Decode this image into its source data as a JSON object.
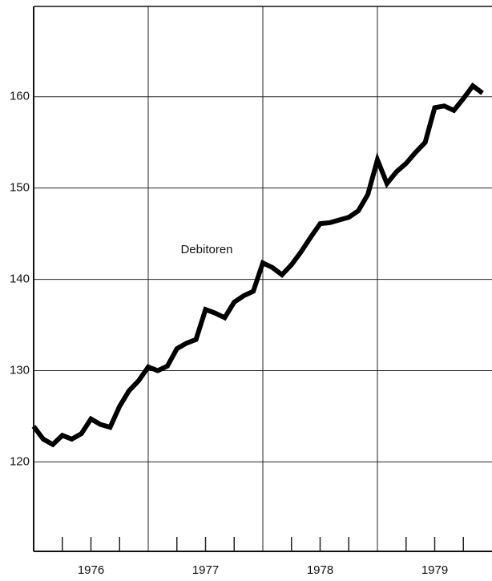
{
  "chart_data": {
    "type": "line",
    "annotation": "Debitoren",
    "x": [
      1976.0,
      1976.083,
      1976.167,
      1976.25,
      1976.333,
      1976.417,
      1976.5,
      1976.583,
      1976.667,
      1976.75,
      1976.833,
      1976.917,
      1977.0,
      1977.083,
      1977.167,
      1977.25,
      1977.333,
      1977.417,
      1977.5,
      1977.583,
      1977.667,
      1977.75,
      1977.833,
      1977.917,
      1978.0,
      1978.083,
      1978.167,
      1978.25,
      1978.333,
      1978.417,
      1978.5,
      1978.583,
      1978.667,
      1978.75,
      1978.833,
      1978.917,
      1979.0,
      1979.083,
      1979.167,
      1979.25,
      1979.333,
      1979.417,
      1979.5,
      1979.583,
      1979.667,
      1979.75,
      1979.833,
      1979.917
    ],
    "series": [
      {
        "name": "Debitoren",
        "color": "#000000",
        "values": [
          123.9,
          122.5,
          121.9,
          122.9,
          122.5,
          123.1,
          124.7,
          124.1,
          123.8,
          126.1,
          127.8,
          128.9,
          130.4,
          130.0,
          130.5,
          132.4,
          133.0,
          133.4,
          136.7,
          136.3,
          135.8,
          137.5,
          138.2,
          138.7,
          141.8,
          141.3,
          140.5,
          141.6,
          143.0,
          144.6,
          146.1,
          146.2,
          146.5,
          146.8,
          147.5,
          149.3,
          153.1,
          150.5,
          151.8,
          152.7,
          153.9,
          155.0,
          158.8,
          159.0,
          158.5,
          159.8,
          161.2,
          160.4
        ]
      }
    ],
    "xlim": [
      1976.0,
      1980.0
    ],
    "ylim": [
      110.2,
      169.9
    ],
    "yticks": [
      120,
      130,
      140,
      150,
      160
    ],
    "xticks": [
      {
        "value": 1976.5,
        "label": "1976"
      },
      {
        "value": 1977.5,
        "label": "1977"
      },
      {
        "value": 1978.5,
        "label": "1978"
      },
      {
        "value": 1979.5,
        "label": "1979"
      }
    ],
    "xgrid": [
      1977,
      1978,
      1979
    ],
    "xminor": [
      1976.25,
      1976.5,
      1976.75,
      1977.25,
      1977.5,
      1977.75,
      1978.25,
      1978.5,
      1978.75,
      1979.25,
      1979.5,
      1979.75
    ],
    "grid": true
  }
}
